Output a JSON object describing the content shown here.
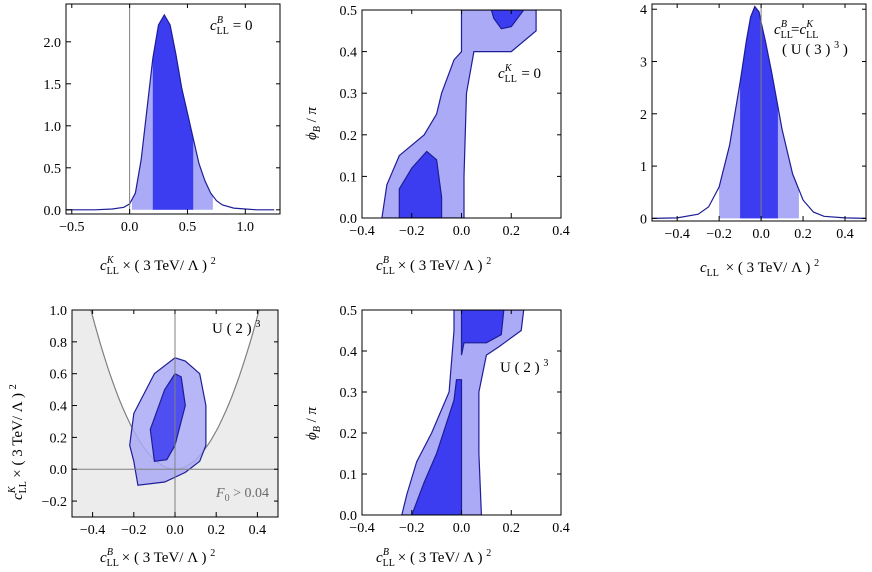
{
  "colors": {
    "dark_blue": "#3c3cf0",
    "light_blue": "#aaaaf6",
    "outline": "#1e1e96",
    "excluded_gray": "#ececec",
    "reference_line": "#808080"
  },
  "chart_data": [
    {
      "id": "p1",
      "type": "area",
      "xlabel": "c_LL^K × (3 TeV/Λ)^2",
      "ylabel": "",
      "xlim": [
        -0.55,
        1.3
      ],
      "ylim": [
        -0.05,
        2.45
      ],
      "xticks": [
        -0.5,
        0.0,
        0.5,
        1.0
      ],
      "xtick_labels": [
        "−0.5",
        "0.0",
        "0.5",
        "1.0"
      ],
      "yticks": [
        0.0,
        0.5,
        1.0,
        1.5,
        2.0
      ],
      "ytick_labels": [
        "0.0",
        "0.5",
        "1.0",
        "1.5",
        "2.0"
      ],
      "annotation": "c_LL^B = 0",
      "vline": 0.0,
      "curve": {
        "x": [
          -0.55,
          -0.3,
          -0.15,
          -0.05,
          0.0,
          0.05,
          0.1,
          0.15,
          0.2,
          0.25,
          0.3,
          0.35,
          0.4,
          0.45,
          0.5,
          0.55,
          0.6,
          0.65,
          0.7,
          0.75,
          0.8,
          0.9,
          1.0,
          1.1,
          1.25
        ],
        "y": [
          0.0,
          0.0,
          0.01,
          0.03,
          0.07,
          0.2,
          0.6,
          1.2,
          1.8,
          2.2,
          2.32,
          2.2,
          1.85,
          1.45,
          1.15,
          0.85,
          0.55,
          0.35,
          0.2,
          0.11,
          0.06,
          0.02,
          0.01,
          0.0,
          0.0
        ]
      },
      "band_68": [
        0.2,
        0.55
      ],
      "band_95": [
        0.02,
        0.72
      ]
    },
    {
      "id": "p2",
      "type": "area",
      "xlabel": "c_LL^B × (3 TeV/Λ)^2",
      "ylabel": "φ_B/π",
      "xlim": [
        -0.4,
        0.4
      ],
      "ylim": [
        0.0,
        0.5
      ],
      "xticks": [
        -0.4,
        -0.2,
        0.0,
        0.2,
        0.4
      ],
      "xtick_labels": [
        "−0.4",
        "−0.2",
        "0.0",
        "0.2",
        "0.4"
      ],
      "yticks": [
        0.0,
        0.1,
        0.2,
        0.3,
        0.4,
        0.5
      ],
      "ytick_labels": [
        "0.0",
        "0.1",
        "0.2",
        "0.3",
        "0.4",
        "0.5"
      ],
      "annotation": "c_LL^K = 0",
      "region_95": [
        [
          [
            -0.32,
            0.0
          ],
          [
            -0.3,
            0.08
          ],
          [
            -0.25,
            0.15
          ],
          [
            -0.15,
            0.2
          ],
          [
            -0.1,
            0.25
          ],
          [
            -0.08,
            0.3
          ],
          [
            -0.03,
            0.38
          ],
          [
            0.0,
            0.4
          ],
          [
            0.0,
            0.5
          ],
          [
            0.3,
            0.5
          ],
          [
            0.3,
            0.45
          ],
          [
            0.2,
            0.4
          ],
          [
            0.05,
            0.4
          ],
          [
            0.02,
            0.3
          ],
          [
            0.01,
            0.1
          ],
          [
            0.01,
            0.0
          ]
        ]
      ],
      "region_68": [
        [
          [
            -0.25,
            0.0
          ],
          [
            -0.25,
            0.07
          ],
          [
            -0.2,
            0.12
          ],
          [
            -0.14,
            0.16
          ],
          [
            -0.1,
            0.14
          ],
          [
            -0.08,
            0.05
          ],
          [
            -0.08,
            0.0
          ]
        ],
        [
          [
            0.12,
            0.5
          ],
          [
            0.13,
            0.48
          ],
          [
            0.16,
            0.455
          ],
          [
            0.2,
            0.46
          ],
          [
            0.25,
            0.5
          ]
        ]
      ]
    },
    {
      "id": "p3",
      "type": "area",
      "xlabel": "c_LL × (3 TeV/Λ)^2",
      "ylabel": "",
      "xlim": [
        -0.52,
        0.5
      ],
      "ylim": [
        -0.05,
        4.1
      ],
      "xticks": [
        -0.4,
        -0.2,
        0.0,
        0.2,
        0.4
      ],
      "xtick_labels": [
        "−0.4",
        "−0.2",
        "0.0",
        "0.2",
        "0.4"
      ],
      "yticks": [
        0,
        1,
        2,
        3,
        4
      ],
      "ytick_labels": [
        "0",
        "1",
        "2",
        "3",
        "4"
      ],
      "annotation": "c_LL^B = c_LL^K",
      "annotation2": "(U(3)^3)",
      "vline": 0.0,
      "curve": {
        "x": [
          -0.52,
          -0.4,
          -0.3,
          -0.25,
          -0.2,
          -0.15,
          -0.1,
          -0.07,
          -0.05,
          -0.03,
          -0.01,
          0.0,
          0.02,
          0.05,
          0.1,
          0.15,
          0.2,
          0.25,
          0.3,
          0.4,
          0.5
        ],
        "y": [
          0.0,
          0.01,
          0.08,
          0.22,
          0.6,
          1.4,
          2.6,
          3.4,
          3.85,
          4.05,
          3.95,
          3.75,
          3.4,
          2.8,
          1.7,
          0.85,
          0.35,
          0.12,
          0.04,
          0.01,
          0.0
        ]
      },
      "band_68": [
        -0.1,
        0.08
      ],
      "band_95": [
        -0.2,
        0.18
      ]
    },
    {
      "id": "p4",
      "type": "area",
      "xlabel": "c_LL^B × (3 TeV/Λ)^2",
      "ylabel": "c_LL^K × (3 TeV/Λ)^2",
      "xlim": [
        -0.5,
        0.5
      ],
      "ylim": [
        -0.3,
        1.0
      ],
      "xticks": [
        -0.4,
        -0.2,
        0.0,
        0.2,
        0.4
      ],
      "xtick_labels": [
        "−0.4",
        "−0.2",
        "0.0",
        "0.2",
        "0.4"
      ],
      "yticks": [
        -0.2,
        0.0,
        0.2,
        0.4,
        0.6,
        0.8,
        1.0
      ],
      "ytick_labels": [
        "−0.2",
        "0.0",
        "0.2",
        "0.4",
        "0.6",
        "0.8",
        "1.0"
      ],
      "annotation": "U(2)^3",
      "annotation2": "F_0>0.04",
      "vline": 0.0,
      "hline": 0.0,
      "parabola_a": 6.0,
      "region_95": [
        [
          [
            -0.18,
            -0.1
          ],
          [
            -0.2,
            0.05
          ],
          [
            -0.22,
            0.15
          ],
          [
            -0.2,
            0.35
          ],
          [
            -0.1,
            0.6
          ],
          [
            0.0,
            0.7
          ],
          [
            0.05,
            0.68
          ],
          [
            0.12,
            0.6
          ],
          [
            0.15,
            0.4
          ],
          [
            0.15,
            0.15
          ],
          [
            0.12,
            0.05
          ],
          [
            0.05,
            -0.02
          ],
          [
            -0.05,
            -0.08
          ]
        ]
      ],
      "region_68": [
        [
          [
            -0.1,
            0.05
          ],
          [
            -0.12,
            0.25
          ],
          [
            -0.05,
            0.5
          ],
          [
            0.0,
            0.6
          ],
          [
            0.03,
            0.58
          ],
          [
            0.05,
            0.4
          ],
          [
            0.0,
            0.15
          ],
          [
            -0.04,
            0.06
          ]
        ]
      ]
    },
    {
      "id": "p5",
      "type": "area",
      "xlabel": "c_LL^B × (3 TeV/Λ)^2",
      "ylabel": "φ_B/π",
      "xlim": [
        -0.4,
        0.4
      ],
      "ylim": [
        0.0,
        0.5
      ],
      "xticks": [
        -0.4,
        -0.2,
        0.0,
        0.2,
        0.4
      ],
      "xtick_labels": [
        "−0.4",
        "−0.2",
        "0.0",
        "0.2",
        "0.4"
      ],
      "yticks": [
        0.0,
        0.1,
        0.2,
        0.3,
        0.4,
        0.5
      ],
      "ytick_labels": [
        "0.0",
        "0.1",
        "0.2",
        "0.3",
        "0.4",
        "0.5"
      ],
      "annotation": "U(2)^3",
      "region_95": [
        [
          [
            -0.24,
            0.0
          ],
          [
            -0.22,
            0.05
          ],
          [
            -0.18,
            0.13
          ],
          [
            -0.12,
            0.2
          ],
          [
            -0.05,
            0.3
          ],
          [
            -0.03,
            0.45
          ],
          [
            -0.03,
            0.5
          ],
          [
            0.25,
            0.5
          ],
          [
            0.24,
            0.45
          ],
          [
            0.15,
            0.41
          ],
          [
            0.1,
            0.39
          ],
          [
            0.07,
            0.3
          ],
          [
            0.07,
            0.15
          ],
          [
            0.08,
            0.0
          ]
        ]
      ],
      "region_68": [
        [
          [
            -0.2,
            0.0
          ],
          [
            -0.15,
            0.08
          ],
          [
            -0.1,
            0.15
          ],
          [
            -0.03,
            0.28
          ],
          [
            -0.02,
            0.33
          ],
          [
            0.0,
            0.33
          ],
          [
            0.0,
            0.0
          ]
        ],
        [
          [
            0.0,
            0.39
          ],
          [
            0.01,
            0.42
          ],
          [
            0.1,
            0.42
          ],
          [
            0.16,
            0.44
          ],
          [
            0.17,
            0.5
          ],
          [
            0.0,
            0.5
          ]
        ]
      ]
    }
  ]
}
